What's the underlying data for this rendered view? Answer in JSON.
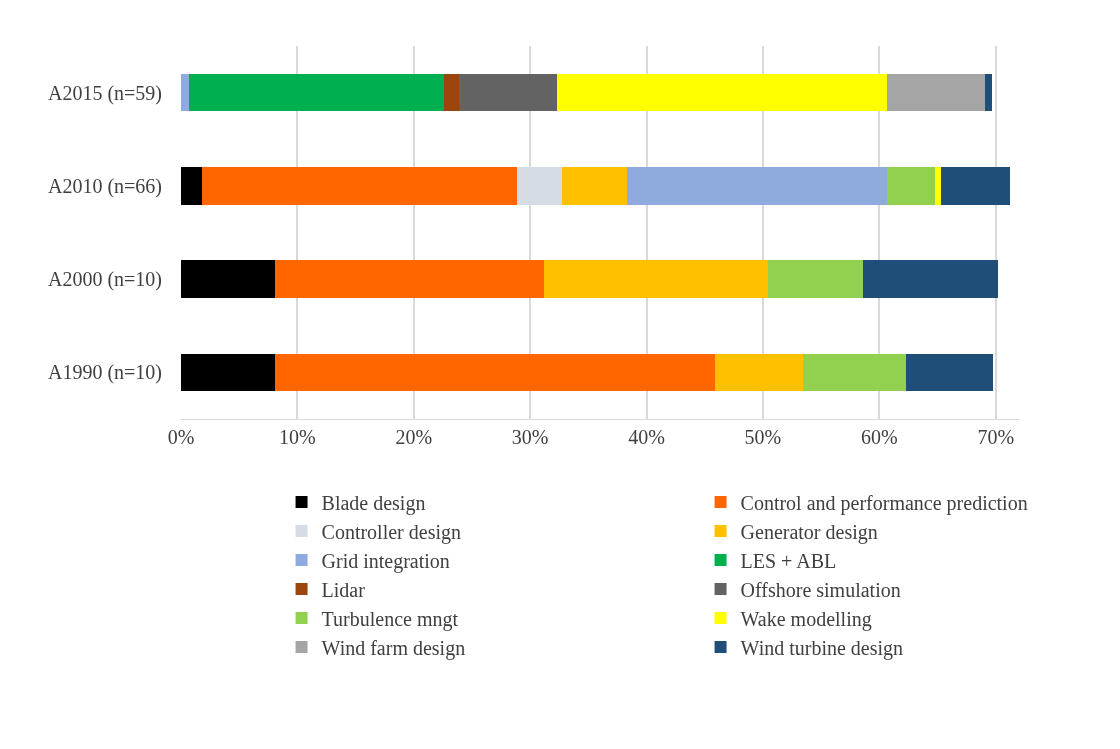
{
  "chart_data": {
    "type": "bar",
    "orientation": "horizontal",
    "stacked": true,
    "categories": [
      "A2015 (n=59)",
      "A2010 (n=66)",
      "A2000 (n=10)",
      "A1990 (n=10)"
    ],
    "series": [
      {
        "name": "Blade design",
        "color": "#000000",
        "values": [
          null,
          1.8,
          8.1,
          8.1
        ]
      },
      {
        "name": "Control and performance prediction",
        "color": "#ff6600",
        "values": [
          null,
          27.1,
          23.1,
          37.8
        ]
      },
      {
        "name": "Controller design",
        "color": "#d6dce4",
        "values": [
          null,
          3.8,
          null,
          null
        ]
      },
      {
        "name": "Generator design",
        "color": "#ffc000",
        "values": [
          null,
          5.6,
          19.2,
          7.5
        ]
      },
      {
        "name": "Grid integration",
        "color": "#8faadc",
        "values": [
          0.7,
          22.4,
          null,
          null
        ]
      },
      {
        "name": "LES + ABL",
        "color": "#00b050",
        "values": [
          21.9,
          null,
          null,
          null
        ]
      },
      {
        "name": "Lidar",
        "color": "#9c450c",
        "values": [
          1.3,
          null,
          null,
          null
        ]
      },
      {
        "name": "Offshore simulation",
        "color": "#636363",
        "values": [
          8.4,
          null,
          null,
          null
        ]
      },
      {
        "name": "Turbulence mngt",
        "color": "#92d050",
        "values": [
          null,
          4.1,
          8.2,
          8.9
        ]
      },
      {
        "name": "Wake modelling",
        "color": "#ffff00",
        "values": [
          28.4,
          0.5,
          null,
          null
        ]
      },
      {
        "name": "Wind farm design",
        "color": "#a5a5a5",
        "values": [
          8.4,
          null,
          null,
          null
        ]
      },
      {
        "name": "Wind turbine design",
        "color": "#1f4e79",
        "values": [
          0.6,
          5.9,
          11.6,
          7.5
        ]
      }
    ],
    "xlim": [
      0,
      72
    ],
    "xticks": [
      {
        "value": 0,
        "label": "0%"
      },
      {
        "value": 10,
        "label": "10%"
      },
      {
        "value": 20,
        "label": "20%"
      },
      {
        "value": 30,
        "label": "30%"
      },
      {
        "value": 40,
        "label": "40%"
      },
      {
        "value": 50,
        "label": "50%"
      },
      {
        "value": 60,
        "label": "60%"
      },
      {
        "value": 70,
        "label": "70%"
      }
    ],
    "grid": "x",
    "legend": "bottom"
  }
}
